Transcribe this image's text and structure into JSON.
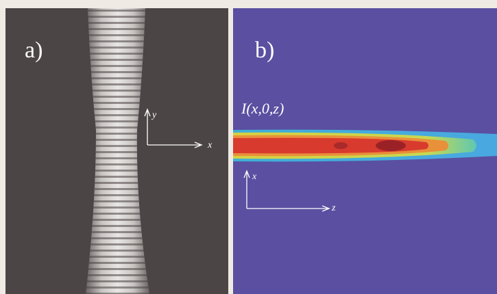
{
  "panels": [
    {
      "label": "a)",
      "axes": {
        "vertical": "y",
        "horizontal": "x"
      }
    },
    {
      "label": "b)",
      "annotation": "I(x,0,z)",
      "axes": {
        "vertical": "x",
        "horizontal": "z"
      }
    }
  ]
}
